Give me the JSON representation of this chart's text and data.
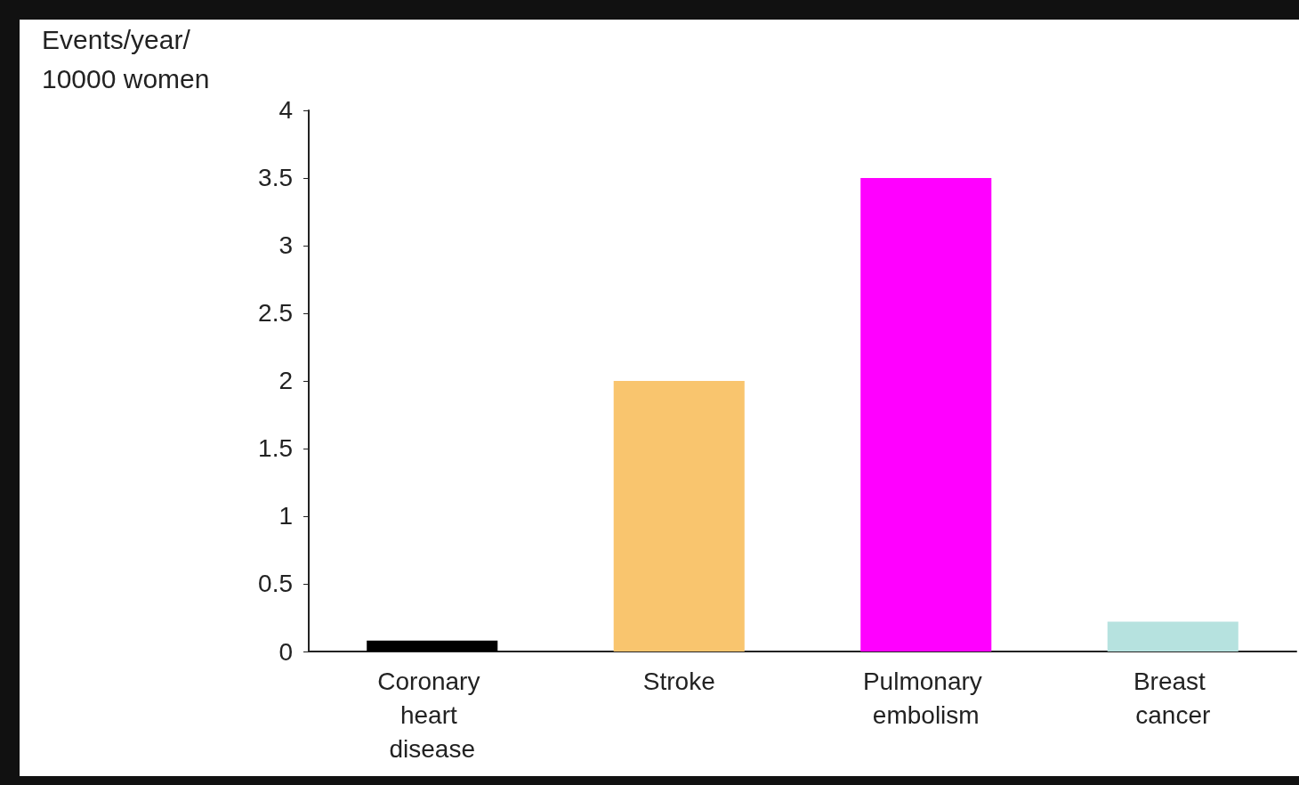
{
  "chart_data": {
    "type": "bar",
    "ylabel": "Events/year/10000 women",
    "categories": [
      "Coronary heart disease",
      "Stroke",
      "Pulmonary embolism",
      "Breast cancer"
    ],
    "values": [
      0.08,
      2,
      3.5,
      0.22
    ],
    "colors": [
      "#000000",
      "#f9c56e",
      "#ff00ff",
      "#b6e2df"
    ],
    "ylim": [
      0,
      4
    ],
    "yticks": [
      0,
      0.5,
      1,
      1.5,
      2,
      2.5,
      3,
      3.5,
      4
    ],
    "grid": false
  }
}
